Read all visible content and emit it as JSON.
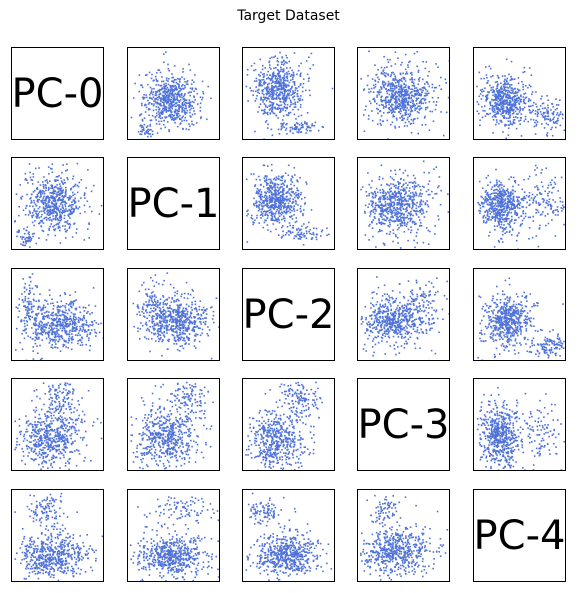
{
  "title": "Target Dataset",
  "chart_data": {
    "type": "scatter",
    "title": "Target Dataset",
    "layout": "pairwise scatter matrix, 5 x 5, diagonal shows component names",
    "components": [
      "PC-0",
      "PC-1",
      "PC-2",
      "PC-3",
      "PC-4"
    ],
    "point_color": "#4f72d9",
    "axes_ticks": "none",
    "grid": false,
    "panels": [
      {
        "row": 0,
        "col": 1,
        "main": [
          0.45,
          0.55
        ],
        "sd": [
          0.17,
          0.15
        ],
        "extra": [
          {
            "c": [
              0.18,
              0.88
            ],
            "sd": [
              0.06,
              0.04
            ],
            "w": 0.08
          }
        ]
      },
      {
        "row": 0,
        "col": 2,
        "main": [
          0.38,
          0.45
        ],
        "sd": [
          0.15,
          0.18
        ],
        "extra": [
          {
            "c": [
              0.6,
              0.85
            ],
            "sd": [
              0.15,
              0.04
            ],
            "w": 0.1
          }
        ]
      },
      {
        "row": 0,
        "col": 3,
        "main": [
          0.45,
          0.5
        ],
        "sd": [
          0.2,
          0.17
        ],
        "extra": []
      },
      {
        "row": 0,
        "col": 4,
        "main": [
          0.32,
          0.55
        ],
        "sd": [
          0.13,
          0.15
        ],
        "extra": [
          {
            "c": [
              0.8,
              0.7
            ],
            "sd": [
              0.1,
              0.1
            ],
            "w": 0.18
          }
        ]
      },
      {
        "row": 1,
        "col": 0,
        "main": [
          0.45,
          0.48
        ],
        "sd": [
          0.18,
          0.17
        ],
        "extra": [
          {
            "c": [
              0.15,
              0.85
            ],
            "sd": [
              0.06,
              0.05
            ],
            "w": 0.08
          }
        ]
      },
      {
        "row": 1,
        "col": 2,
        "main": [
          0.35,
          0.45
        ],
        "sd": [
          0.15,
          0.16
        ],
        "extra": [
          {
            "c": [
              0.62,
              0.8
            ],
            "sd": [
              0.14,
              0.05
            ],
            "w": 0.1
          }
        ]
      },
      {
        "row": 1,
        "col": 3,
        "main": [
          0.42,
          0.5
        ],
        "sd": [
          0.2,
          0.17
        ],
        "extra": []
      },
      {
        "row": 1,
        "col": 4,
        "main": [
          0.3,
          0.52
        ],
        "sd": [
          0.13,
          0.15
        ],
        "extra": [
          {
            "c": [
              0.75,
              0.45
            ],
            "sd": [
              0.12,
              0.18
            ],
            "w": 0.2
          }
        ]
      },
      {
        "row": 2,
        "col": 0,
        "main": [
          0.5,
          0.58
        ],
        "sd": [
          0.22,
          0.15
        ],
        "extra": [
          {
            "c": [
              0.17,
              0.35
            ],
            "sd": [
              0.05,
              0.16
            ],
            "w": 0.12
          }
        ]
      },
      {
        "row": 2,
        "col": 1,
        "main": [
          0.52,
          0.55
        ],
        "sd": [
          0.2,
          0.15
        ],
        "extra": [
          {
            "c": [
              0.25,
              0.35
            ],
            "sd": [
              0.06,
              0.15
            ],
            "w": 0.12
          }
        ]
      },
      {
        "row": 2,
        "col": 3,
        "main": [
          0.38,
          0.55
        ],
        "sd": [
          0.2,
          0.15
        ],
        "extra": [
          {
            "c": [
              0.72,
              0.35
            ],
            "sd": [
              0.15,
              0.12
            ],
            "w": 0.12
          }
        ]
      },
      {
        "row": 2,
        "col": 4,
        "main": [
          0.35,
          0.55
        ],
        "sd": [
          0.14,
          0.15
        ],
        "extra": [
          {
            "c": [
              0.8,
              0.82
            ],
            "sd": [
              0.1,
              0.07
            ],
            "w": 0.18
          }
        ]
      },
      {
        "row": 3,
        "col": 0,
        "main": [
          0.4,
          0.62
        ],
        "sd": [
          0.2,
          0.18
        ],
        "extra": [
          {
            "c": [
              0.5,
              0.2
            ],
            "sd": [
              0.12,
              0.15
            ],
            "w": 0.2
          }
        ]
      },
      {
        "row": 3,
        "col": 1,
        "main": [
          0.4,
          0.62
        ],
        "sd": [
          0.2,
          0.18
        ],
        "extra": [
          {
            "c": [
              0.65,
              0.2
            ],
            "sd": [
              0.12,
              0.15
            ],
            "w": 0.2
          }
        ]
      },
      {
        "row": 3,
        "col": 2,
        "main": [
          0.35,
          0.65
        ],
        "sd": [
          0.17,
          0.18
        ],
        "extra": [
          {
            "c": [
              0.6,
              0.2
            ],
            "sd": [
              0.12,
              0.15
            ],
            "w": 0.2
          }
        ]
      },
      {
        "row": 3,
        "col": 4,
        "main": [
          0.28,
          0.6
        ],
        "sd": [
          0.12,
          0.2
        ],
        "extra": [
          {
            "c": [
              0.72,
              0.6
            ],
            "sd": [
              0.12,
              0.2
            ],
            "w": 0.18
          }
        ]
      },
      {
        "row": 4,
        "col": 0,
        "main": [
          0.42,
          0.7
        ],
        "sd": [
          0.22,
          0.13
        ],
        "extra": [
          {
            "c": [
              0.35,
              0.2
            ],
            "sd": [
              0.1,
              0.12
            ],
            "w": 0.15
          }
        ]
      },
      {
        "row": 4,
        "col": 1,
        "main": [
          0.45,
          0.7
        ],
        "sd": [
          0.22,
          0.12
        ],
        "extra": [
          {
            "c": [
              0.6,
              0.2
            ],
            "sd": [
              0.2,
              0.1
            ],
            "w": 0.15
          }
        ]
      },
      {
        "row": 4,
        "col": 2,
        "main": [
          0.45,
          0.68
        ],
        "sd": [
          0.2,
          0.13
        ],
        "extra": [
          {
            "c": [
              0.2,
              0.22
            ],
            "sd": [
              0.08,
              0.08
            ],
            "w": 0.12
          }
        ]
      },
      {
        "row": 4,
        "col": 3,
        "main": [
          0.4,
          0.65
        ],
        "sd": [
          0.22,
          0.14
        ],
        "extra": [
          {
            "c": [
              0.28,
              0.22
            ],
            "sd": [
              0.1,
              0.12
            ],
            "w": 0.12
          }
        ]
      }
    ]
  }
}
